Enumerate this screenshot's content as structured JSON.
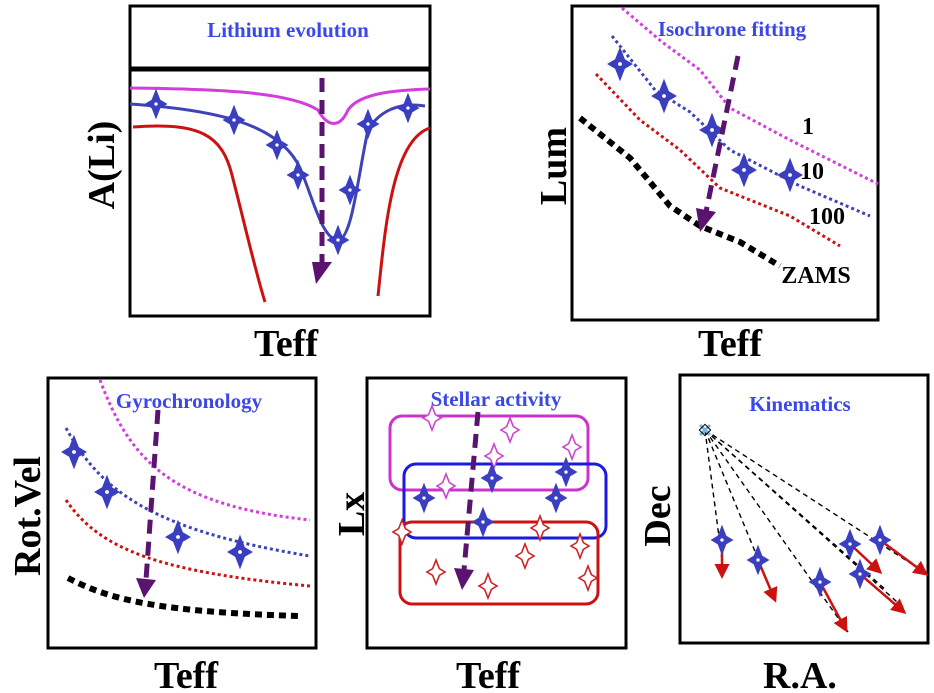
{
  "colors": {
    "title": "#3b47e8",
    "magenta": "#d23ddb",
    "blue": "#3f43b8",
    "red": "#cc1111",
    "black": "#000000",
    "arrow": "#5a136e",
    "star_blue": "#3a3fbf",
    "star_magenta": "#cc44cc",
    "star_red": "#cc2222",
    "box_magenta": "#cc33cc",
    "box_blue": "#1a1ae0",
    "box_red": "#cc1111",
    "origin": "#7ab8d8"
  },
  "panels": {
    "lithium": {
      "title": "Lithium evolution",
      "xlabel": "Teff",
      "ylabel": "A(Li)"
    },
    "isochrone": {
      "title": "Isochrone fitting",
      "xlabel": "Teff",
      "ylabel": "Lum",
      "curve_labels": [
        "1",
        "10",
        "100",
        "ZAMS"
      ]
    },
    "gyro": {
      "title": "Gyrochronology",
      "xlabel": "Teff",
      "ylabel": "Rot.Vel"
    },
    "activity": {
      "title": "Stellar activity",
      "xlabel": "Teff",
      "ylabel": "Lx"
    },
    "kinematics": {
      "title": "Kinematics",
      "xlabel": "R.A.",
      "ylabel": "Dec"
    }
  }
}
